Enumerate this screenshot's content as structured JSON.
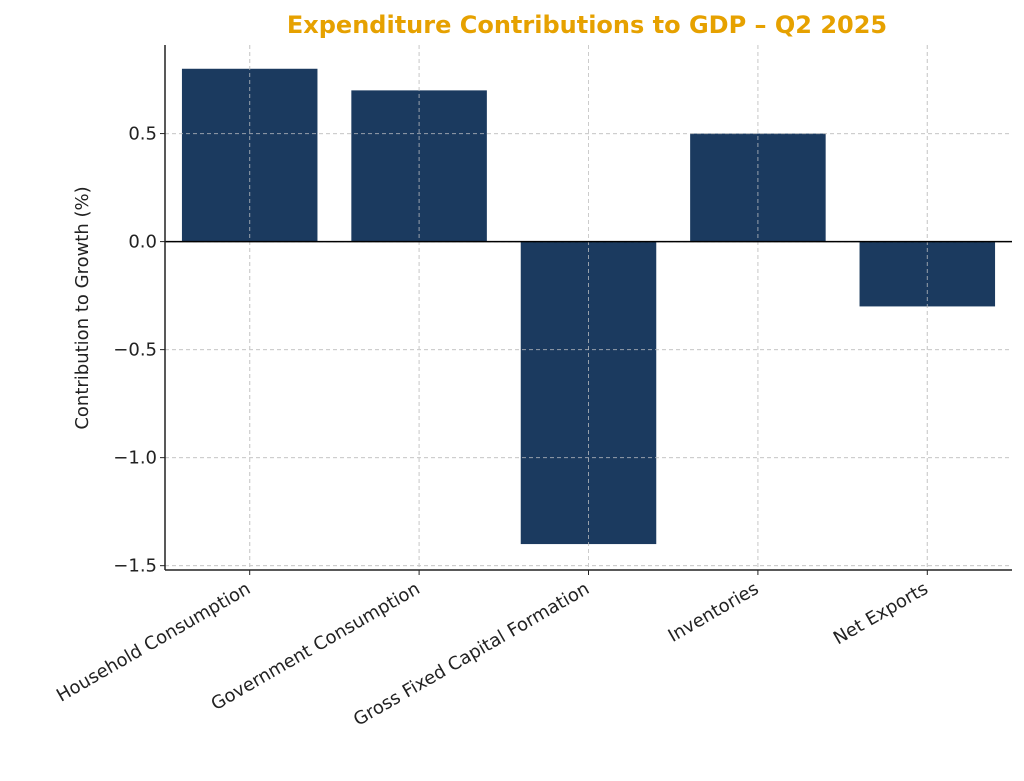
{
  "chart_data": {
    "type": "bar",
    "title": "Expenditure Contributions to GDP – Q2 2025",
    "xlabel": "",
    "ylabel": "Contribution to Growth (%)",
    "categories": [
      "Household Consumption",
      "Government Consumption",
      "Gross Fixed Capital Formation",
      "Inventories",
      "Net Exports"
    ],
    "values": [
      0.8,
      0.7,
      -1.4,
      0.5,
      -0.3
    ],
    "ylim": [
      -1.52,
      0.91
    ],
    "yticks": [
      0.5,
      0.0,
      -0.5,
      -1.0,
      -1.5
    ],
    "ytick_labels": [
      "0.5",
      "0.0",
      "−0.5",
      "−1.0",
      "−1.5"
    ],
    "grid": true,
    "zero_line": true,
    "legend": "none",
    "colors": {
      "bar": "#1b3a5f",
      "title": "#e6a100",
      "grid": "#cccccc",
      "axis": "#222222"
    }
  }
}
